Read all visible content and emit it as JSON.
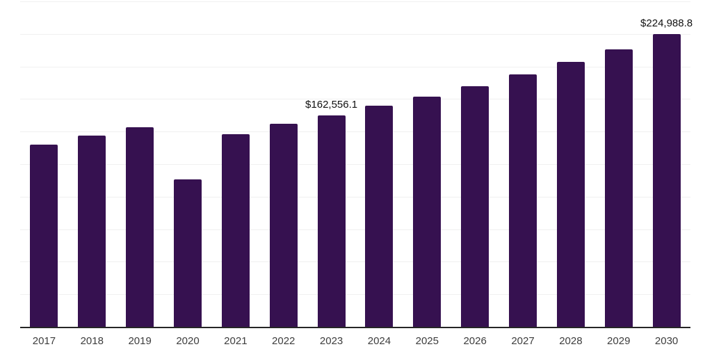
{
  "chart_data": {
    "type": "bar",
    "title": "",
    "xlabel": "",
    "ylabel": "",
    "categories": [
      "2017",
      "2018",
      "2019",
      "2020",
      "2021",
      "2022",
      "2023",
      "2024",
      "2025",
      "2026",
      "2027",
      "2028",
      "2029",
      "2030"
    ],
    "values": [
      139950,
      146900,
      153300,
      113250,
      147970,
      155980,
      162556.1,
      169870,
      176820,
      184830,
      193910,
      203530,
      213140,
      224988.8
    ],
    "data_labels": [
      "",
      "",
      "",
      "",
      "",
      "",
      "$162,556.1",
      "",
      "",
      "",
      "",
      "",
      "",
      "$224,988.8"
    ],
    "ylim": [
      0,
      250000
    ],
    "gridline_step": 25000,
    "grid": "horizontal",
    "legend": "none"
  },
  "style": {
    "bar_color": "#361150",
    "grid_color": "#f0f0f0",
    "axis_color": "#262626",
    "tick_label_color": "#3d3d3d",
    "data_label_color": "#111111",
    "background": "#ffffff"
  }
}
